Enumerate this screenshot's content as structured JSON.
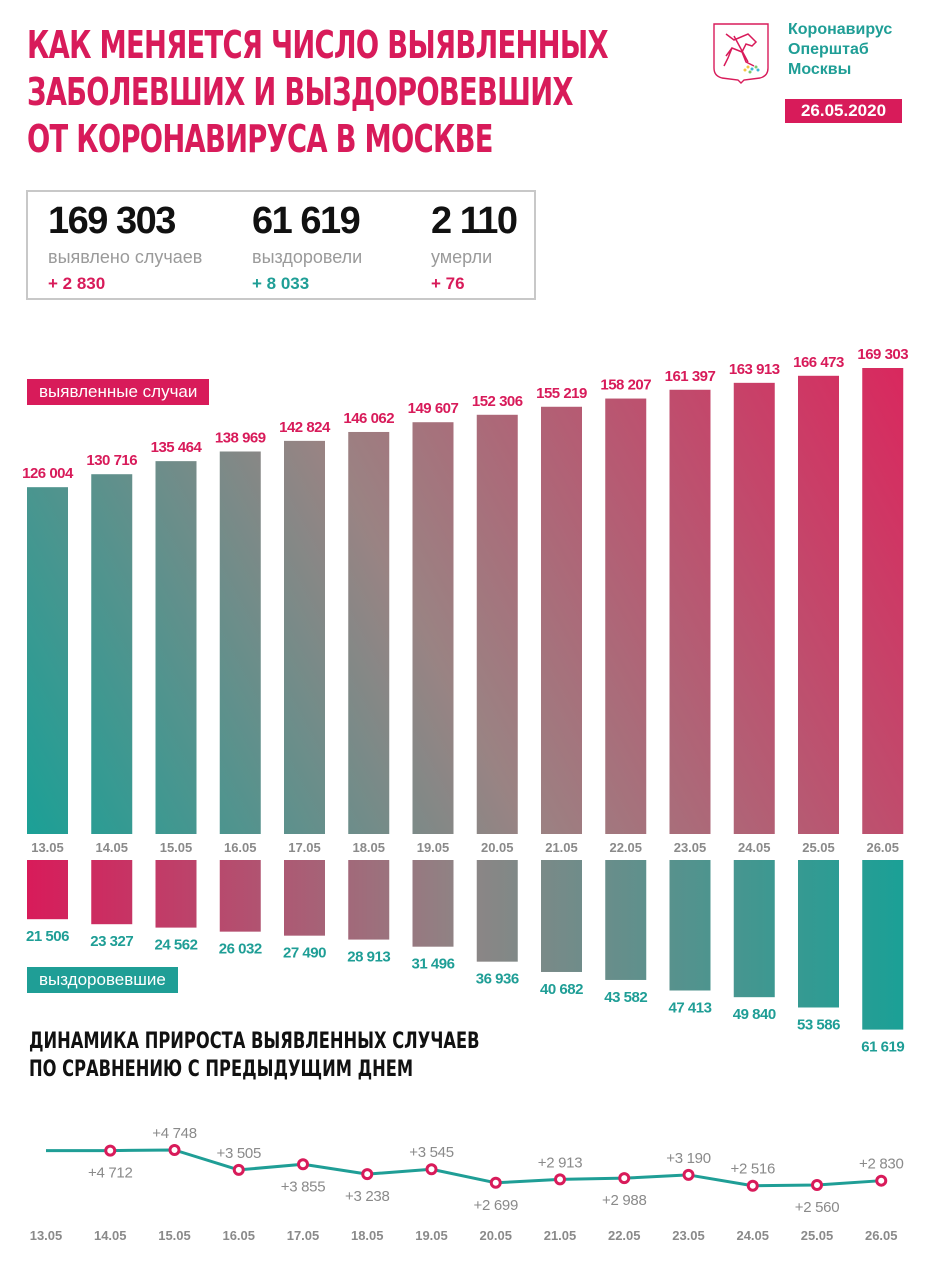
{
  "header": {
    "title_lines": [
      "КАК МЕНЯЕТСЯ ЧИСЛО ВЫЯВЛЕННЫХ",
      "ЗАБОЛЕВШИХ И ВЫЗДОРОВЕВШИХ",
      "ОТ КОРОНАВИРУСА В МОСКВЕ"
    ],
    "org_lines": [
      "Коронавирус",
      "Оперштаб",
      "Москвы"
    ],
    "date": "26.05.2020",
    "logo_icon": "moscow-coat-of-arms-icon"
  },
  "summary": [
    {
      "value": "169 303",
      "label": "выявлено случаев",
      "delta": "+ 2 830",
      "delta_color": "#d81b5a"
    },
    {
      "value": "61 619",
      "label": "выздоровели",
      "delta": "+ 8 033",
      "delta_color": "#1f9e96"
    },
    {
      "value": "2 110",
      "label": "умерли",
      "delta": "+ 76",
      "delta_color": "#d81b5a"
    }
  ],
  "colors": {
    "pink": "#d81b5a",
    "teal": "#1f9e96",
    "gray": "#8a8a8a"
  },
  "legend": {
    "cases": "выявленные случаи",
    "recovered": "выздоровевшие"
  },
  "subtitle_lines": [
    "ДИНАМИКА ПРИРОСТА ВЫЯВЛЕННЫХ СЛУЧАЕВ",
    "ПО СРАВНЕНИЮ С ПРЕДЫДУЩИМ ДНЕМ"
  ],
  "chart_data": [
    {
      "type": "bar",
      "title": "выявленные случаи",
      "categories": [
        "13.05",
        "14.05",
        "15.05",
        "16.05",
        "17.05",
        "18.05",
        "19.05",
        "20.05",
        "21.05",
        "22.05",
        "23.05",
        "24.05",
        "25.05",
        "26.05"
      ],
      "values": [
        126004,
        130716,
        135464,
        138969,
        142824,
        146062,
        149607,
        152306,
        155219,
        158207,
        161397,
        163913,
        166473,
        169303
      ],
      "labels": [
        "126 004",
        "130 716",
        "135 464",
        "138 969",
        "142 824",
        "146 062",
        "149 607",
        "152 306",
        "155 219",
        "158 207",
        "161 397",
        "163 913",
        "166 473",
        "169 303"
      ],
      "ylim": [
        0,
        170000
      ]
    },
    {
      "type": "bar",
      "title": "выздоровевшие",
      "categories": [
        "13.05",
        "14.05",
        "15.05",
        "16.05",
        "17.05",
        "18.05",
        "19.05",
        "20.05",
        "21.05",
        "22.05",
        "23.05",
        "24.05",
        "25.05",
        "26.05"
      ],
      "values": [
        21506,
        23327,
        24562,
        26032,
        27490,
        28913,
        31496,
        36936,
        40682,
        43582,
        47413,
        49840,
        53586,
        61619
      ],
      "labels": [
        "21 506",
        "23 327",
        "24 562",
        "26 032",
        "27 490",
        "28 913",
        "31 496",
        "36 936",
        "40 682",
        "43 582",
        "47 413",
        "49 840",
        "53 586",
        "61 619"
      ],
      "ylim": [
        0,
        62000
      ]
    },
    {
      "type": "line",
      "title": "ДИНАМИКА ПРИРОСТА ВЫЯВЛЕННЫХ СЛУЧАЕВ ПО СРАВНЕНИЮ С ПРЕДЫДУЩИМ ДНЕМ",
      "categories": [
        "13.05",
        "14.05",
        "15.05",
        "16.05",
        "17.05",
        "18.05",
        "19.05",
        "20.05",
        "21.05",
        "22.05",
        "23.05",
        "24.05",
        "25.05",
        "26.05"
      ],
      "values": [
        null,
        4712,
        4748,
        3505,
        3855,
        3238,
        3545,
        2699,
        2913,
        2988,
        3190,
        2516,
        2560,
        2830
      ],
      "labels": [
        null,
        "+4 712",
        "+4 748",
        "+3 505",
        "+3 855",
        "+3 238",
        "+3 545",
        "+2 699",
        "+2 913",
        "+2 988",
        "+3 190",
        "+2 516",
        "+2 560",
        "+2 830"
      ],
      "label_position": [
        "",
        "below",
        "above",
        "above",
        "below",
        "below",
        "above",
        "below",
        "above",
        "below",
        "above",
        "above",
        "below",
        "above"
      ]
    }
  ]
}
